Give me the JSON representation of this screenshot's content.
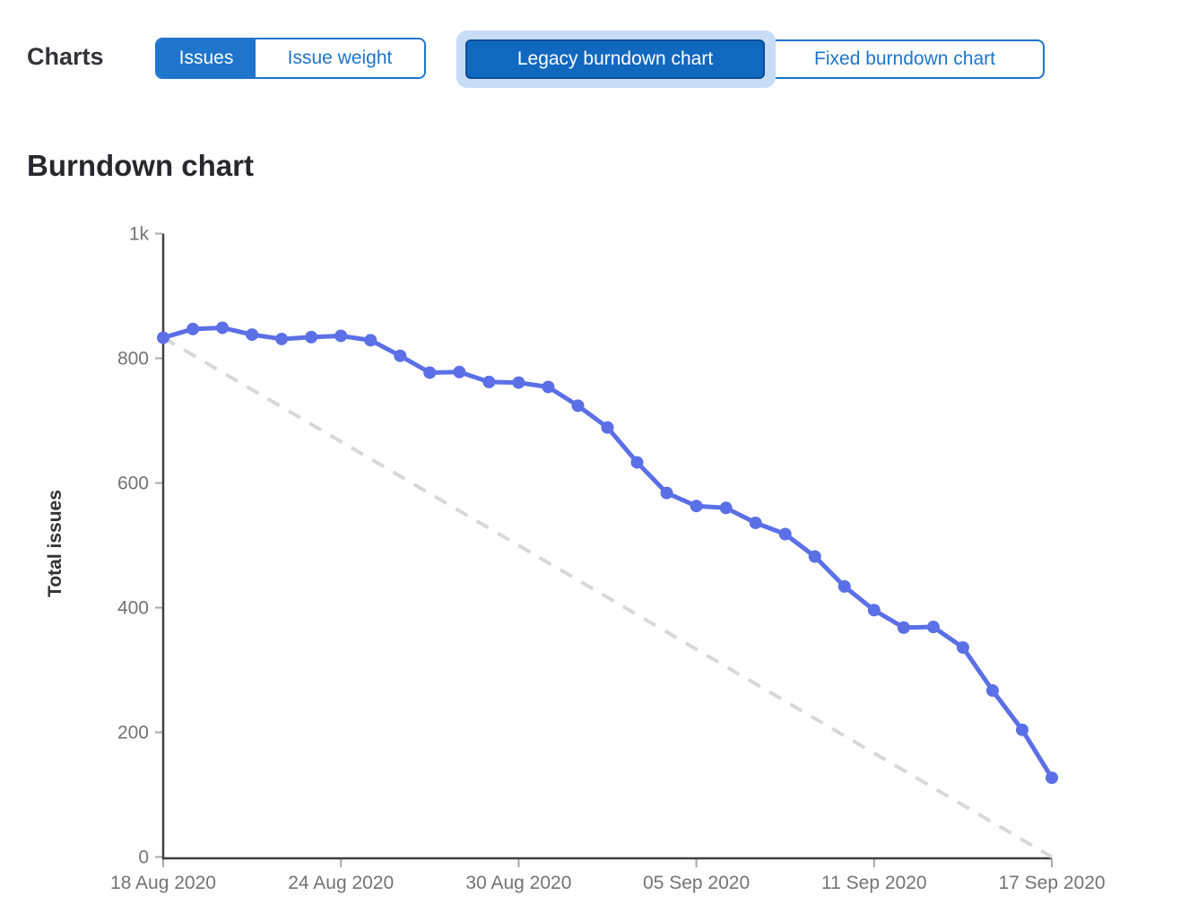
{
  "toolbar": {
    "charts_label": "Charts",
    "metric_toggle": {
      "options": [
        {
          "label": "Issues",
          "selected": true
        },
        {
          "label": "Issue weight",
          "selected": false
        }
      ]
    },
    "chart_type_toggle": {
      "options": [
        {
          "label": "Legacy burndown chart",
          "selected": true
        },
        {
          "label": "Fixed burndown chart",
          "selected": false
        }
      ]
    }
  },
  "heading": "Burndown chart",
  "colors": {
    "accent": "#1f75cb",
    "selected_chart_bg": "#1168bf",
    "selected_chart_border": "#0a4d99",
    "focus_ring": "#c7dcf5",
    "heading_text": "#28272d",
    "axis_line": "#404040",
    "tick_mark": "#a9a9a9",
    "tick_label": "#737373",
    "axis_title": "#333333"
  },
  "chart_data": {
    "type": "line",
    "title": "Burndown chart",
    "xlabel": "",
    "ylabel": "Total issues",
    "ylim": [
      0,
      1000
    ],
    "grid": false,
    "legend": "none",
    "ytick_values": [
      1000,
      800,
      600,
      400,
      200,
      0
    ],
    "ytick_labels": [
      "1k",
      "800",
      "600",
      "400",
      "200",
      "0"
    ],
    "x_tick_labels": [
      "18 Aug 2020",
      "24 Aug 2020",
      "30 Aug 2020",
      "05 Sep 2020",
      "11 Sep 2020",
      "17 Sep 2020"
    ],
    "x_tick_days": [
      0,
      6,
      12,
      18,
      24,
      30
    ],
    "x_max_day": 30,
    "series": [
      {
        "name": "Guideline",
        "style": "dashed",
        "color": "#d8d8d8",
        "points": [
          [
            0,
            833
          ],
          [
            30,
            0
          ]
        ]
      },
      {
        "name": "Open issues",
        "style": "solid-with-points",
        "color": "#5b6fe6",
        "x_days": [
          0,
          1,
          2,
          3,
          4,
          5,
          6,
          7,
          8,
          9,
          10,
          11,
          12,
          13,
          14,
          15,
          16,
          17,
          18,
          19,
          20,
          21,
          22,
          23,
          24,
          25,
          26,
          27,
          28,
          29,
          30
        ],
        "values": [
          833,
          847,
          849,
          838,
          831,
          834,
          836,
          829,
          804,
          777,
          778,
          762,
          761,
          754,
          724,
          689,
          633,
          584,
          563,
          560,
          536,
          518,
          482,
          434,
          396,
          368,
          369,
          336,
          267,
          204,
          127
        ]
      }
    ]
  }
}
